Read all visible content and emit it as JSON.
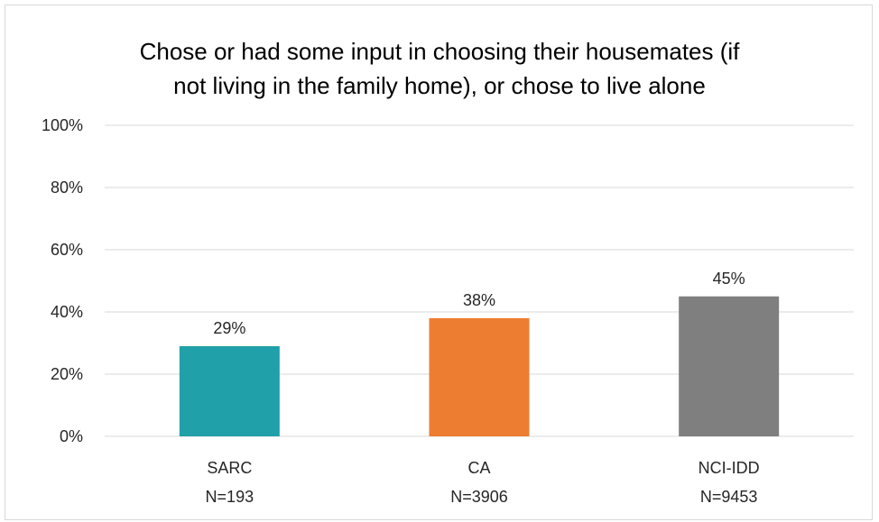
{
  "chart_data": {
    "type": "bar",
    "title_lines": [
      "Chose or had some input in choosing their housemates (if",
      "not living in the family home), or chose to live alone"
    ],
    "categories": [
      {
        "name": "SARC",
        "n_label": "N=193"
      },
      {
        "name": "CA",
        "n_label": "N=3906"
      },
      {
        "name": "NCI-IDD",
        "n_label": "N=9453"
      }
    ],
    "values": [
      29,
      38,
      45
    ],
    "data_labels": [
      "29%",
      "38%",
      "45%"
    ],
    "colors": [
      "#20a0a8",
      "#ed7d31",
      "#7f7f7f"
    ],
    "ylim": [
      0,
      100
    ],
    "yticks": [
      0,
      20,
      40,
      60,
      80,
      100
    ],
    "ytick_labels": [
      "0%",
      "20%",
      "40%",
      "60%",
      "80%",
      "100%"
    ],
    "grid": true,
    "legend": "none"
  }
}
